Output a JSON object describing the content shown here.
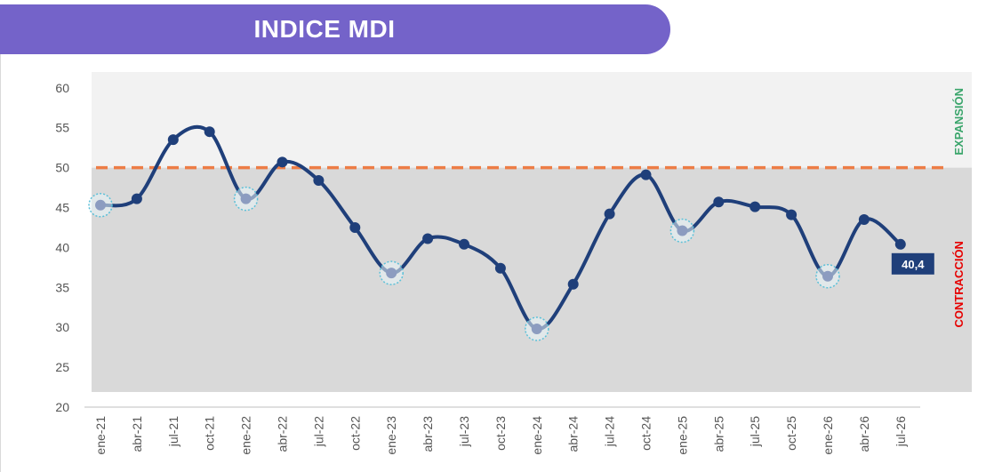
{
  "header": {
    "title": "INDICE MDI"
  },
  "colors": {
    "banner": "#7463c9",
    "line": "#1f3f7a",
    "threshold": "#ed7d46",
    "expansion_bg": "#f2f2f2",
    "contraction_bg": "#d9d9d9",
    "expansion_text": "#3aa56b",
    "contraction_text": "#e60000",
    "highlight_marker": "#8c9cc0",
    "highlight_ring": "#5bc0d8"
  },
  "chart_data": {
    "type": "line",
    "categories": [
      "ene-21",
      "abr-21",
      "jul-21",
      "oct-21",
      "ene-22",
      "abr-22",
      "jul-22",
      "oct-22",
      "ene-23",
      "abr-23",
      "jul-23",
      "oct-23",
      "ene-24",
      "abr-24",
      "jul-24",
      "oct-24",
      "ene-25",
      "abr-25",
      "jul-25",
      "oct-25",
      "ene-26",
      "abr-26",
      "jul-26"
    ],
    "values": [
      45.3,
      46.1,
      53.5,
      54.5,
      46.1,
      50.7,
      48.4,
      42.5,
      36.8,
      41.1,
      40.4,
      37.4,
      29.8,
      35.4,
      44.2,
      49.1,
      42.1,
      45.7,
      45.1,
      44.1,
      36.4,
      43.5,
      40.4
    ],
    "highlighted_categories": [
      "ene-21",
      "ene-22",
      "ene-23",
      "ene-24",
      "ene-25",
      "ene-26"
    ],
    "threshold": 50,
    "ylim": [
      20,
      60
    ],
    "yticks": [
      20,
      25,
      30,
      35,
      40,
      45,
      50,
      55,
      60
    ],
    "zones": {
      "expansion": "EXPANSIÓN",
      "contraction": "CONTRACCIÓN"
    },
    "last_value_label": "40,4",
    "grid": false
  }
}
